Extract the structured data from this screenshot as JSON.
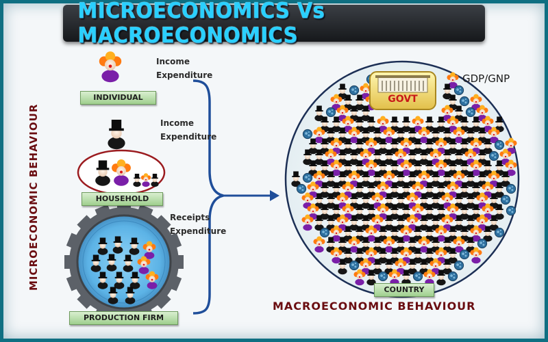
{
  "title": "MICROECONOMICS Vs MACROECONOMICS",
  "side_label": "MICROECONOMIC BEHAVIOUR",
  "macro_label": "MACROECONOMIC BEHAVIOUR",
  "gdp_label": "GDP/GNP",
  "govt_label": "GOVT",
  "country_label": "COUNTRY",
  "entities": {
    "individual": {
      "label": "INDIVIDUAL",
      "flow": [
        "Income",
        "Expenditure"
      ]
    },
    "household_head": {
      "flow": [
        "Income",
        "Expenditure"
      ]
    },
    "household": {
      "label": "HOUSEHOLD"
    },
    "firm": {
      "label": "PRODUCTION FIRM",
      "flow": [
        "Receipts",
        "Expenditure"
      ]
    }
  },
  "colors": {
    "accent": "#29d0ff",
    "frame": "#0f6f82",
    "label_dark_red": "#6a0d11",
    "bracket_blue": "#1f4e9a"
  }
}
